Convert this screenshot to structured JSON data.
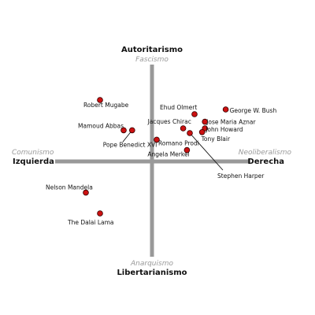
{
  "chart_data": {
    "type": "scatter",
    "title": "",
    "xlim": [
      -10,
      10
    ],
    "ylim": [
      -10,
      10
    ],
    "grid": false,
    "legend": "none",
    "point_color": "#cc1111",
    "axis_color": "#999999",
    "axes": {
      "top": {
        "label": "Autoritarismo",
        "sublabel": "Fascismo"
      },
      "bottom": {
        "label": "Libertarianismo",
        "sublabel": "Anarquismo"
      },
      "left": {
        "label": "Izquierda",
        "sublabel": "Comunismo"
      },
      "right": {
        "label": "Derecha",
        "sublabel": "Neoliberalismo"
      }
    },
    "points": [
      {
        "name": "Robert Mugabe",
        "x": -5.5,
        "y": 6.5
      },
      {
        "name": "Mamoud Abbas",
        "x": -3.0,
        "y": 3.3
      },
      {
        "name": "Pope Benedict XVI",
        "x": -2.1,
        "y": 3.3
      },
      {
        "name": "Ehud Olmert",
        "x": 4.5,
        "y": 5.0
      },
      {
        "name": "George W. Bush",
        "x": 7.8,
        "y": 5.5
      },
      {
        "name": "Jacques Chirac",
        "x": 3.3,
        "y": 3.5
      },
      {
        "name": "Jose Maria Aznar",
        "x": 5.6,
        "y": 4.2
      },
      {
        "name": "John Howard",
        "x": 5.6,
        "y": 3.5
      },
      {
        "name": "Tony Blair",
        "x": 5.3,
        "y": 3.1
      },
      {
        "name": "Stephen Harper",
        "x": 4.0,
        "y": 3.0
      },
      {
        "name": "Romano Prodi",
        "x": 0.5,
        "y": 2.3
      },
      {
        "name": "Angela Merkel",
        "x": 3.7,
        "y": 1.2
      },
      {
        "name": "Nelson Mandela",
        "x": -7.0,
        "y": -3.3
      },
      {
        "name": "The Dalai Lama",
        "x": -5.5,
        "y": -5.5
      }
    ]
  }
}
